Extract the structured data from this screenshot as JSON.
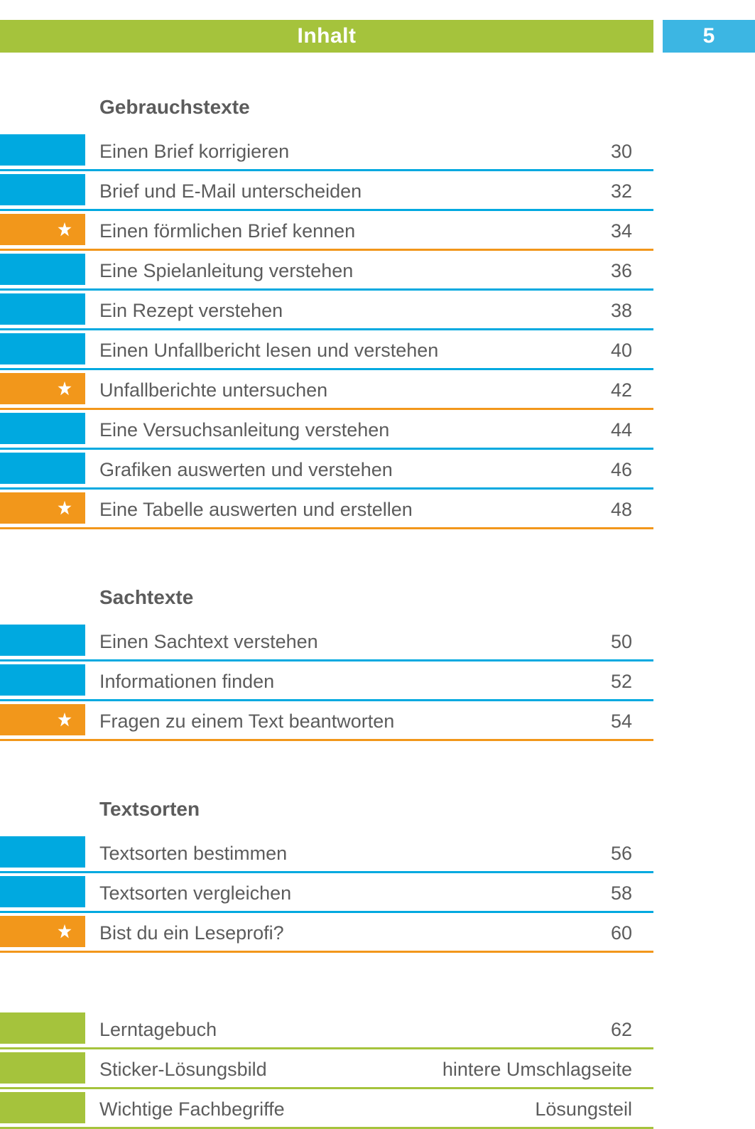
{
  "header": {
    "title": "Inhalt",
    "page_number": "5"
  },
  "colors": {
    "green": "#a5c33c",
    "blue": "#00a9e0",
    "orange": "#f2971b",
    "text": "#5c5c5c"
  },
  "sections": [
    {
      "title": "Gebrauchstexte",
      "rows": [
        {
          "label": "Einen Brief korrigieren",
          "page": "30",
          "variant": "blue",
          "star": false
        },
        {
          "label": "Brief und E-Mail unterscheiden",
          "page": "32",
          "variant": "blue",
          "star": false
        },
        {
          "label": "Einen förmlichen Brief kennen",
          "page": "34",
          "variant": "orange",
          "star": true
        },
        {
          "label": "Eine Spielanleitung verstehen",
          "page": "36",
          "variant": "blue",
          "star": false
        },
        {
          "label": "Ein Rezept verstehen",
          "page": "38",
          "variant": "blue",
          "star": false
        },
        {
          "label": "Einen Unfallbericht lesen und verstehen",
          "page": "40",
          "variant": "blue",
          "star": false
        },
        {
          "label": "Unfallberichte untersuchen",
          "page": "42",
          "variant": "orange",
          "star": true
        },
        {
          "label": "Eine Versuchsanleitung verstehen",
          "page": "44",
          "variant": "blue",
          "star": false
        },
        {
          "label": "Grafiken auswerten und verstehen",
          "page": "46",
          "variant": "blue",
          "star": false
        },
        {
          "label": "Eine Tabelle auswerten und erstellen",
          "page": "48",
          "variant": "orange",
          "star": true
        }
      ]
    },
    {
      "title": "Sachtexte",
      "rows": [
        {
          "label": "Einen Sachtext verstehen",
          "page": "50",
          "variant": "blue",
          "star": false
        },
        {
          "label": "Informationen finden",
          "page": "52",
          "variant": "blue",
          "star": false
        },
        {
          "label": "Fragen zu einem Text beantworten",
          "page": "54",
          "variant": "orange",
          "star": true
        }
      ]
    },
    {
      "title": "Textsorten",
      "rows": [
        {
          "label": "Textsorten bestimmen",
          "page": "56",
          "variant": "blue",
          "star": false
        },
        {
          "label": "Textsorten vergleichen",
          "page": "58",
          "variant": "blue",
          "star": false
        },
        {
          "label": "Bist du ein Leseprofi?",
          "page": "60",
          "variant": "orange",
          "star": true
        }
      ]
    },
    {
      "title": "",
      "rows": [
        {
          "label": "Lerntagebuch",
          "page": "62",
          "variant": "green",
          "star": false
        },
        {
          "label": "Sticker-Lösungsbild",
          "page": "hintere Umschlagseite",
          "variant": "green",
          "star": false
        },
        {
          "label": "Wichtige Fachbegriffe",
          "page": "Lösungsteil",
          "variant": "green",
          "star": false
        }
      ]
    }
  ]
}
